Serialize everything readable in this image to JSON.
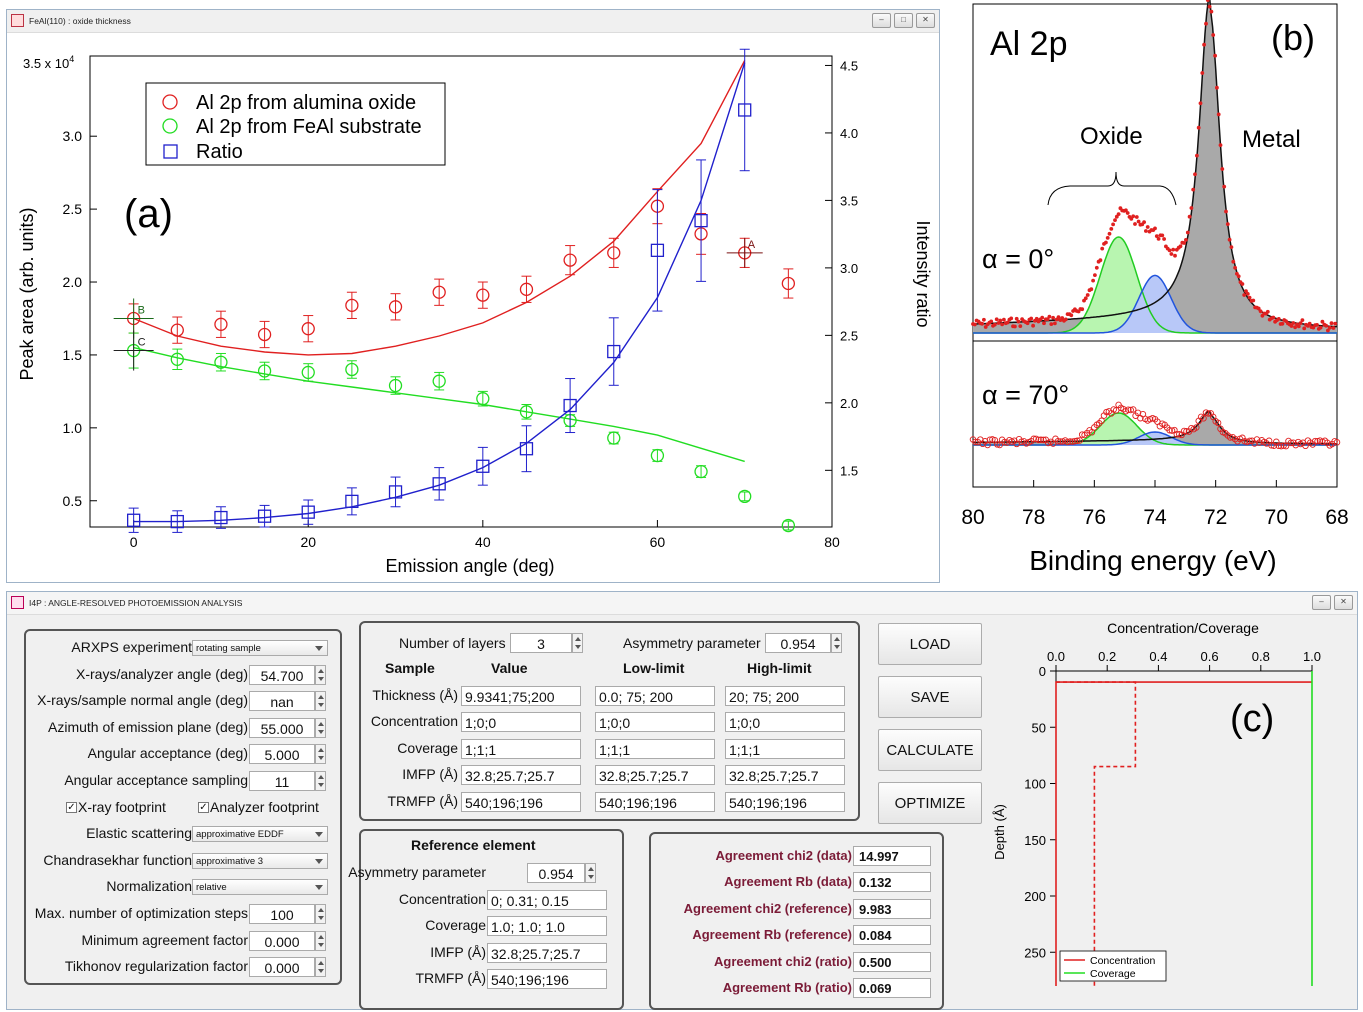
{
  "window_a": {
    "title": "FeAl(110) : oxide thickness",
    "panel_label": "(a)",
    "y_label_left": "Peak area (arb. units)",
    "y_label_right": "Intensity ratio",
    "x_label": "Emission angle (deg)",
    "y_top_label": "3.5 x 10",
    "y_top_exp": "4",
    "legend": [
      "Al 2p from alumina oxide",
      "Al 2p from FeAl substrate",
      "Ratio"
    ],
    "marker_labels": {
      "A": "A",
      "B": "B",
      "C": "C"
    },
    "colors": {
      "oxide": "#e02020",
      "substrate": "#22dd22",
      "ratio": "#2020cc"
    }
  },
  "chart_data": [
    {
      "type": "scatter",
      "panel": "a",
      "x_range": [
        -5,
        80
      ],
      "x_ticks": [
        0,
        20,
        40,
        60,
        80
      ],
      "y_range": [
        0.32,
        3.55
      ],
      "y_ticks": [
        0.5,
        1.0,
        1.5,
        2.0,
        2.5,
        3.0
      ],
      "y_ticks_label": [
        "0.5",
        "1.0",
        "1.5",
        "2.0",
        "2.5",
        "3.0"
      ],
      "y2_range": [
        1.08,
        4.57
      ],
      "y2_ticks": [
        1.5,
        2.0,
        2.5,
        3.0,
        3.5,
        4.0,
        4.5
      ],
      "y2_ticks_label": [
        "1.5",
        "2.0",
        "2.5",
        "3.0",
        "3.5",
        "4.0",
        "4.5"
      ],
      "series": [
        {
          "name": "Al 2p from alumina oxide",
          "axis": "left",
          "x": [
            0,
            5,
            10,
            15,
            20,
            25,
            30,
            35,
            40,
            45,
            50,
            55,
            60,
            65,
            70,
            75
          ],
          "y": [
            1.75,
            1.67,
            1.71,
            1.64,
            1.68,
            1.84,
            1.83,
            1.93,
            1.91,
            1.95,
            2.15,
            2.2,
            2.52,
            2.33,
            2.2,
            1.99
          ],
          "err": [
            0.1,
            0.09,
            0.09,
            0.09,
            0.09,
            0.09,
            0.09,
            0.09,
            0.09,
            0.09,
            0.1,
            0.1,
            0.12,
            0.14,
            0.1,
            0.1
          ],
          "fit_x": [
            0,
            5,
            10,
            15,
            20,
            25,
            30,
            35,
            40,
            45,
            50,
            55,
            60,
            65,
            70
          ],
          "fit_y": [
            1.75,
            1.63,
            1.56,
            1.52,
            1.5,
            1.51,
            1.56,
            1.63,
            1.72,
            1.86,
            2.04,
            2.28,
            2.62,
            2.95,
            3.52
          ]
        },
        {
          "name": "Al 2p from FeAl substrate",
          "axis": "left",
          "x": [
            0,
            5,
            10,
            15,
            20,
            25,
            30,
            35,
            40,
            45,
            50,
            55,
            60,
            65,
            70,
            75
          ],
          "y": [
            1.53,
            1.47,
            1.45,
            1.39,
            1.38,
            1.4,
            1.29,
            1.32,
            1.2,
            1.11,
            1.05,
            0.93,
            0.81,
            0.7,
            0.53,
            0.33
          ],
          "err": [
            0.12,
            0.07,
            0.06,
            0.06,
            0.06,
            0.06,
            0.06,
            0.06,
            0.05,
            0.05,
            0.04,
            0.04,
            0.04,
            0.04,
            0.03,
            0.03
          ],
          "fit_x": [
            0,
            5,
            10,
            15,
            20,
            25,
            30,
            35,
            40,
            45,
            50,
            55,
            60,
            65,
            70
          ],
          "fit_y": [
            1.55,
            1.48,
            1.42,
            1.37,
            1.32,
            1.28,
            1.24,
            1.2,
            1.16,
            1.11,
            1.06,
            1.01,
            0.95,
            0.86,
            0.77
          ]
        },
        {
          "name": "Ratio",
          "axis": "right",
          "x": [
            0,
            5,
            10,
            15,
            20,
            25,
            30,
            35,
            40,
            45,
            50,
            55,
            60,
            65,
            70
          ],
          "y": [
            1.13,
            1.12,
            1.15,
            1.16,
            1.19,
            1.27,
            1.34,
            1.4,
            1.53,
            1.66,
            1.98,
            2.38,
            3.13,
            3.35,
            4.17
          ],
          "err": [
            0.09,
            0.08,
            0.08,
            0.08,
            0.09,
            0.1,
            0.11,
            0.12,
            0.14,
            0.17,
            0.2,
            0.25,
            0.45,
            0.45,
            0.45
          ],
          "fit_x": [
            0,
            5,
            10,
            15,
            20,
            25,
            30,
            35,
            40,
            45,
            50,
            55,
            60,
            65,
            70
          ],
          "fit_y": [
            1.12,
            1.12,
            1.13,
            1.15,
            1.18,
            1.23,
            1.3,
            1.39,
            1.52,
            1.7,
            1.95,
            2.3,
            2.78,
            3.5,
            4.52
          ]
        }
      ]
    },
    {
      "type": "area",
      "panel": "b",
      "x_range": [
        80,
        68
      ],
      "x_ticks": [
        80,
        78,
        76,
        74,
        72,
        70,
        68
      ],
      "x_ticks_label": [
        "80",
        "78",
        "76",
        "74",
        "72",
        "70",
        "68"
      ],
      "xlabel": "Binding energy (eV)",
      "components": [
        {
          "name": "Oxide",
          "center_eV": 75.2,
          "fill": "#b8f5b0",
          "stroke": "#22cc22"
        },
        {
          "name": "Oxide",
          "center_eV": 74.0,
          "fill": "#b8c8f8",
          "stroke": "#2255dd"
        },
        {
          "name": "Metal",
          "center_eV": 72.2,
          "fill": "#a8a8a8",
          "stroke": "#222222"
        }
      ],
      "spectra": [
        {
          "label": "α  = 0°",
          "ox1": 0.3,
          "ox2": 0.18,
          "metal": 1.0
        },
        {
          "label": "α  = 70°",
          "ox1": 0.32,
          "ox2": 0.13,
          "metal": 0.29
        }
      ]
    },
    {
      "type": "line",
      "panel": "c",
      "title": "Concentration/Coverage",
      "ylabel": "Depth (Å)",
      "x_range": [
        0,
        1.0
      ],
      "x_ticks": [
        0.0,
        0.2,
        0.4,
        0.6,
        0.8,
        1.0
      ],
      "x_ticks_label": [
        "0.0",
        "0.2",
        "0.4",
        "0.6",
        "0.8",
        "1.0"
      ],
      "y_range": [
        0,
        280
      ],
      "y_ticks": [
        0,
        50,
        100,
        150,
        200,
        250
      ],
      "y_ticks_label": [
        "0",
        "50",
        "100",
        "150",
        "200",
        "250"
      ],
      "legend": [
        "Concentration",
        "Coverage"
      ],
      "series": [
        {
          "name": "Concentration",
          "style": "solid",
          "color": "#e02020",
          "points": [
            [
              1.0,
              9.9
            ],
            [
              0.0,
              9.9
            ],
            [
              0.0,
              280
            ]
          ]
        },
        {
          "name": "Concentration",
          "style": "dashed",
          "color": "#e02020",
          "points": [
            [
              0.0,
              9.9
            ],
            [
              0.31,
              9.9
            ],
            [
              0.31,
              85
            ],
            [
              0.15,
              85
            ],
            [
              0.15,
              280
            ]
          ]
        },
        {
          "name": "Coverage",
          "style": "solid",
          "color": "#22dd22",
          "points": [
            [
              1.0,
              0
            ],
            [
              1.0,
              280
            ]
          ]
        }
      ]
    }
  ],
  "panel_b": {
    "title": "Al 2p",
    "panel_label": "(b)",
    "oxide_label": "Oxide",
    "metal_label": "Metal",
    "xlabel": "Binding energy (eV)"
  },
  "window_c": {
    "title": "I4P : ANGLE-RESOLVED PHOTOEMISSION ANALYSIS",
    "panel_label": "(c)",
    "settings": [
      {
        "label": "ARXPS experiment",
        "type": "select",
        "value": "rotating sample"
      },
      {
        "label": "X-rays/analyzer angle (deg)",
        "type": "spin",
        "value": "54.700"
      },
      {
        "label": "X-rays/sample normal angle (deg)",
        "type": "spin",
        "value": "nan"
      },
      {
        "label": "Azimuth of emission plane (deg)",
        "type": "spin",
        "value": "55.000"
      },
      {
        "label": "Angular acceptance (deg)",
        "type": "spin",
        "value": "5.000"
      },
      {
        "label": "Angular acceptance sampling",
        "type": "spin",
        "value": "11"
      },
      {
        "label": "checks",
        "type": "checks"
      },
      {
        "label": "Elastic scattering",
        "type": "select",
        "value": "approximative EDDF"
      },
      {
        "label": "Chandrasekhar function",
        "type": "select",
        "value": "approximative 3"
      },
      {
        "label": "Normalization",
        "type": "select",
        "value": "relative"
      },
      {
        "label": "Max. number of optimization steps",
        "type": "spin",
        "value": "100"
      },
      {
        "label": "Minimum agreement factor",
        "type": "spin",
        "value": "0.000"
      },
      {
        "label": "Tikhonov regularization factor",
        "type": "spin",
        "value": "0.000"
      }
    ],
    "checks": {
      "xray_footprint": "X-ray footprint",
      "analyzer_footprint": "Analyzer footprint"
    },
    "layers": {
      "num_layers_label": "Number of layers",
      "num_layers_value": "3",
      "asym_label": "Asymmetry parameter",
      "asym_value": "0.954",
      "headers": [
        "Sample",
        "Value",
        "Low-limit",
        "High-limit"
      ],
      "rows": [
        {
          "label": "Thickness (Å)",
          "value": "9.9341;75;200",
          "low": "0.0; 75; 200",
          "high": "20; 75; 200"
        },
        {
          "label": "Concentration",
          "value": "1;0;0",
          "low": "1;0;0",
          "high": "1;0;0"
        },
        {
          "label": "Coverage",
          "value": "1;1;1",
          "low": "1;1;1",
          "high": "1;1;1"
        },
        {
          "label": "IMFP (Å)",
          "value": "32.8;25.7;25.7",
          "low": "32.8;25.7;25.7",
          "high": "32.8;25.7;25.7"
        },
        {
          "label": "TRMFP (Å)",
          "value": "540;196;196",
          "low": "540;196;196",
          "high": "540;196;196"
        }
      ]
    },
    "reference": {
      "title": "Reference element",
      "rows": [
        {
          "label": "Asymmetry parameter",
          "value": "0.954"
        },
        {
          "label": "Concentration",
          "value": "0; 0.31; 0.15"
        },
        {
          "label": "Coverage",
          "value": "1.0; 1.0; 1.0"
        },
        {
          "label": "IMFP (Å)",
          "value": "32.8;25.7;25.7"
        },
        {
          "label": "TRMFP (Å)",
          "value": "540;196;196"
        }
      ]
    },
    "buttons": [
      "LOAD",
      "SAVE",
      "CALCULATE",
      "OPTIMIZE"
    ],
    "agreement": [
      {
        "label": "Agreement chi2 (data)",
        "value": "14.997"
      },
      {
        "label": "Agreement Rb (data)",
        "value": "0.132"
      },
      {
        "label": "Agreement chi2 (reference)",
        "value": "9.983"
      },
      {
        "label": "Agreement Rb (reference)",
        "value": "0.084"
      },
      {
        "label": "Agreement chi2 (ratio)",
        "value": "0.500"
      },
      {
        "label": "Agreement Rb (ratio)",
        "value": "0.069"
      }
    ],
    "colors": {
      "agreement_text": "#7b1b37"
    }
  }
}
